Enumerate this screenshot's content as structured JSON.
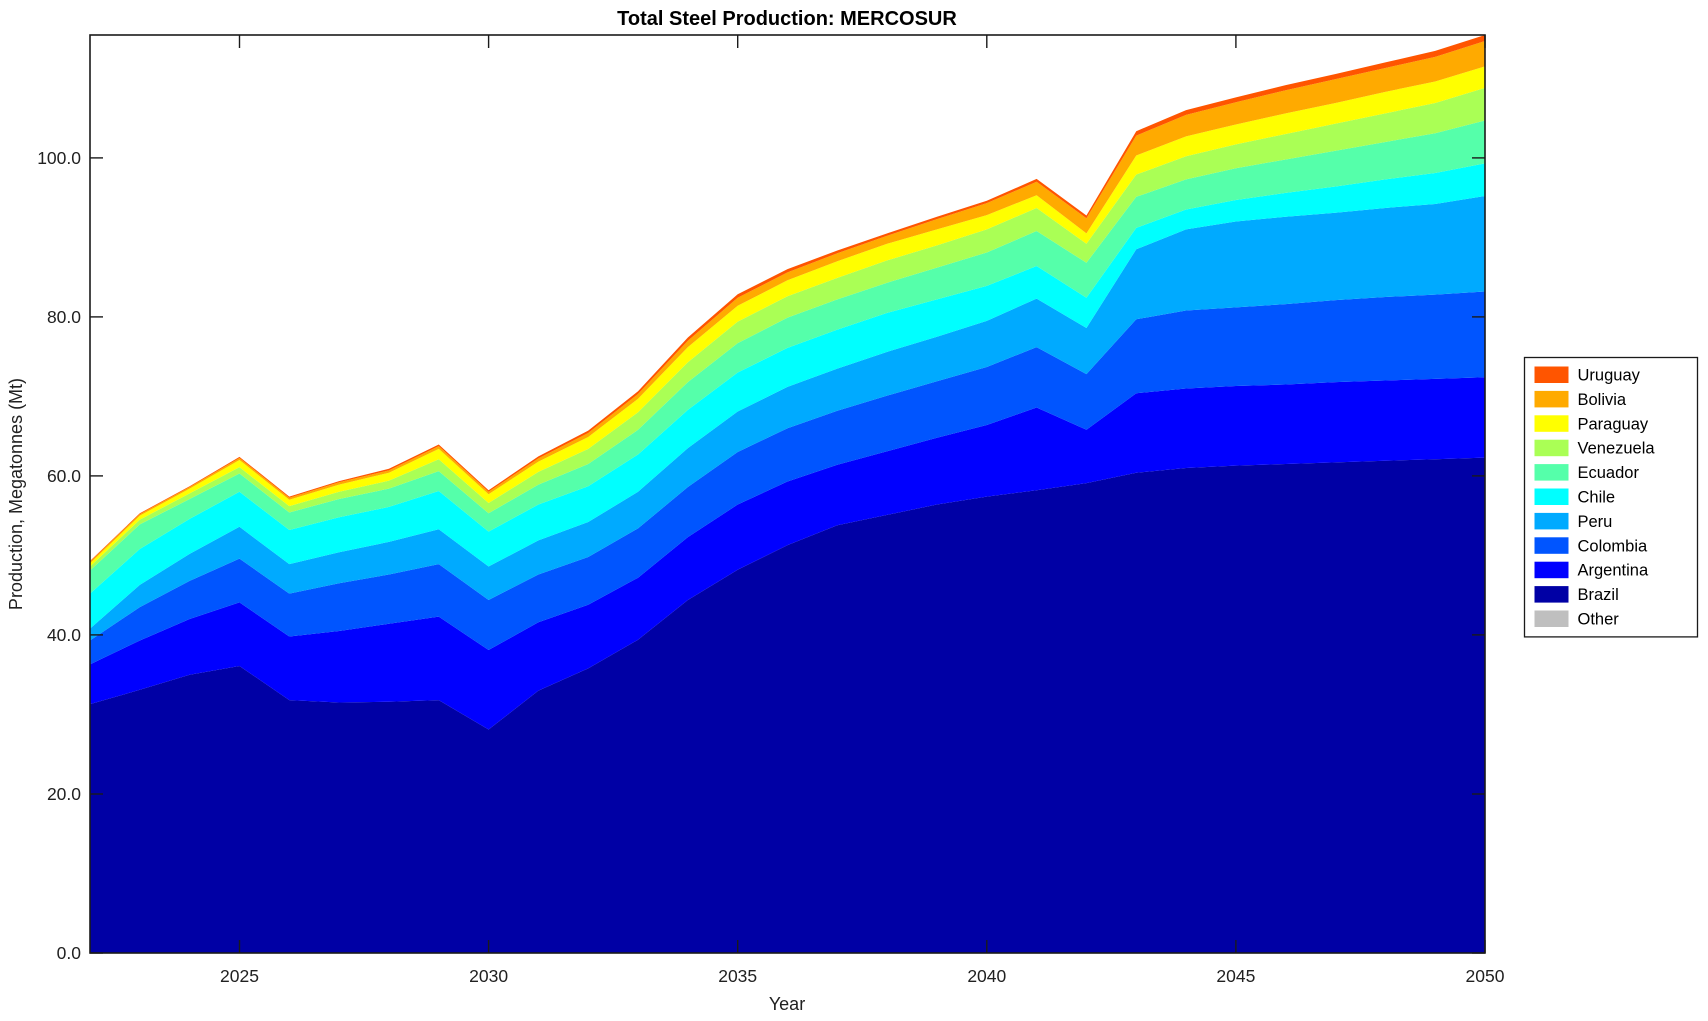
{
  "styles": {
    "background": "#FFFFFF",
    "axis_color": "#1A1A1A",
    "text_color": "#212121",
    "legend_border_color": "#1A1A1A"
  },
  "chart_data": {
    "type": "area",
    "stacked": true,
    "title": "Total Steel Production: MERCOSUR",
    "xlabel": "Year",
    "ylabel": "Production, Megatonnes (Mt)",
    "grid": false,
    "legend_position": "right-outside",
    "xlim": [
      2022,
      2050
    ],
    "ylim": [
      0,
      115.45
    ],
    "x": [
      2022,
      2023,
      2024,
      2025,
      2026,
      2027,
      2028,
      2029,
      2030,
      2031,
      2032,
      2033,
      2034,
      2035,
      2036,
      2037,
      2038,
      2039,
      2040,
      2041,
      2042,
      2043,
      2044,
      2045,
      2046,
      2047,
      2048,
      2049,
      2050
    ],
    "xticks": [
      {
        "value": 2025,
        "label": "2025"
      },
      {
        "value": 2030,
        "label": "2030"
      },
      {
        "value": 2035,
        "label": "2035"
      },
      {
        "value": 2040,
        "label": "2040"
      },
      {
        "value": 2045,
        "label": "2045"
      },
      {
        "value": 2050,
        "label": "2050"
      }
    ],
    "yticks": [
      {
        "value": 0,
        "label": "0.0"
      },
      {
        "value": 20,
        "label": "20.0"
      },
      {
        "value": 40,
        "label": "40.0"
      },
      {
        "value": 60,
        "label": "60.0"
      },
      {
        "value": 80,
        "label": "80.0"
      },
      {
        "value": 100,
        "label": "100.0"
      }
    ],
    "legend_order_top_to_bottom": [
      "Uruguay",
      "Bolivia",
      "Paraguay",
      "Venezuela",
      "Ecuador",
      "Chile",
      "Peru",
      "Colombia",
      "Argentina",
      "Brazil",
      "Other"
    ],
    "series": [
      {
        "name": "Other",
        "color": "#BFBFBF",
        "values": [
          0,
          0,
          0,
          0,
          0,
          0,
          0,
          0,
          0,
          0,
          0,
          0,
          0,
          0,
          0,
          0,
          0,
          0,
          0,
          0,
          0,
          0,
          0,
          0,
          0,
          0,
          0,
          0,
          0
        ]
      },
      {
        "name": "Brazil",
        "color": "#0000A5",
        "values": [
          31.3,
          33.1,
          35.0,
          36.1,
          31.8,
          31.5,
          31.6,
          31.8,
          28.1,
          33.0,
          35.8,
          39.4,
          44.4,
          48.2,
          51.3,
          53.8,
          55.1,
          56.4,
          57.4,
          58.2,
          59.1,
          60.4,
          61.0,
          61.3,
          61.5,
          61.7,
          61.9,
          62.1,
          62.3
        ]
      },
      {
        "name": "Argentina",
        "color": "#0000FF",
        "values": [
          5.0,
          6.2,
          7.0,
          8.0,
          8.0,
          9.0,
          9.8,
          10.5,
          10.0,
          8.6,
          8.0,
          7.8,
          7.9,
          8.2,
          8.0,
          7.6,
          8.0,
          8.4,
          9.0,
          10.4,
          6.7,
          10.0,
          10.0,
          10.0,
          10.0,
          10.1,
          10.1,
          10.1,
          10.1
        ]
      },
      {
        "name": "Colombia",
        "color": "#0055FF",
        "values": [
          3.0,
          4.2,
          4.8,
          5.5,
          5.4,
          6.0,
          6.2,
          6.6,
          6.3,
          6.0,
          6.0,
          6.2,
          6.3,
          6.6,
          6.7,
          6.8,
          7.0,
          7.1,
          7.3,
          7.6,
          7.0,
          9.3,
          9.8,
          9.9,
          10.1,
          10.3,
          10.5,
          10.6,
          10.8
        ]
      },
      {
        "name": "Peru",
        "color": "#00AAFF",
        "values": [
          1.5,
          2.8,
          3.4,
          4.0,
          3.7,
          3.9,
          4.1,
          4.4,
          4.2,
          4.3,
          4.4,
          4.6,
          4.9,
          5.1,
          5.2,
          5.3,
          5.5,
          5.6,
          5.8,
          6.1,
          5.8,
          8.8,
          10.2,
          10.8,
          11.0,
          11.0,
          11.2,
          11.4,
          12.0
        ]
      },
      {
        "name": "Chile",
        "color": "#00FFFF",
        "values": [
          4.4,
          4.5,
          4.4,
          4.4,
          4.3,
          4.4,
          4.4,
          4.8,
          4.4,
          4.5,
          4.5,
          4.7,
          4.8,
          4.9,
          4.9,
          4.9,
          4.9,
          4.7,
          4.4,
          4.1,
          3.8,
          2.7,
          2.5,
          2.7,
          3.0,
          3.3,
          3.6,
          3.9,
          4.1
        ]
      },
      {
        "name": "Ecuador",
        "color": "#55FFAA",
        "values": [
          2.9,
          3.1,
          2.5,
          2.3,
          2.2,
          2.3,
          2.3,
          2.5,
          2.3,
          2.5,
          2.8,
          3.1,
          3.5,
          3.7,
          3.8,
          3.8,
          3.8,
          4.0,
          4.2,
          4.4,
          4.4,
          3.9,
          3.8,
          4.0,
          4.2,
          4.5,
          4.7,
          5.0,
          5.4
        ]
      },
      {
        "name": "Venezuela",
        "color": "#AAFF55",
        "values": [
          0.5,
          0.6,
          0.7,
          0.8,
          0.8,
          0.9,
          1.0,
          1.5,
          1.3,
          1.6,
          1.9,
          2.2,
          2.5,
          2.7,
          2.7,
          2.7,
          2.8,
          2.8,
          2.9,
          2.9,
          2.4,
          2.8,
          2.9,
          3.0,
          3.2,
          3.4,
          3.6,
          3.8,
          4.1
        ]
      },
      {
        "name": "Paraguay",
        "color": "#FFFF00",
        "values": [
          0.4,
          0.5,
          0.6,
          0.9,
          0.8,
          0.9,
          1.0,
          1.3,
          1.1,
          1.3,
          1.5,
          1.7,
          1.9,
          2.0,
          2.0,
          2.1,
          2.1,
          2.0,
          1.8,
          1.6,
          1.3,
          2.4,
          2.5,
          2.5,
          2.6,
          2.6,
          2.7,
          2.7,
          2.7
        ]
      },
      {
        "name": "Bolivia",
        "color": "#FFAA00",
        "values": [
          0.2,
          0.2,
          0.2,
          0.25,
          0.25,
          0.3,
          0.3,
          0.35,
          0.3,
          0.4,
          0.5,
          0.6,
          0.8,
          1.0,
          1.0,
          1.0,
          1.0,
          1.3,
          1.5,
          1.7,
          1.9,
          2.5,
          2.7,
          2.8,
          2.9,
          3.0,
          3.0,
          3.1,
          3.2
        ]
      },
      {
        "name": "Uruguay",
        "color": "#FF5500",
        "values": [
          0.1,
          0.1,
          0.1,
          0.15,
          0.15,
          0.15,
          0.2,
          0.2,
          0.2,
          0.25,
          0.3,
          0.35,
          0.4,
          0.45,
          0.4,
          0.35,
          0.3,
          0.3,
          0.3,
          0.35,
          0.35,
          0.55,
          0.6,
          0.6,
          0.65,
          0.65,
          0.7,
          0.75,
          0.75
        ]
      }
    ]
  }
}
